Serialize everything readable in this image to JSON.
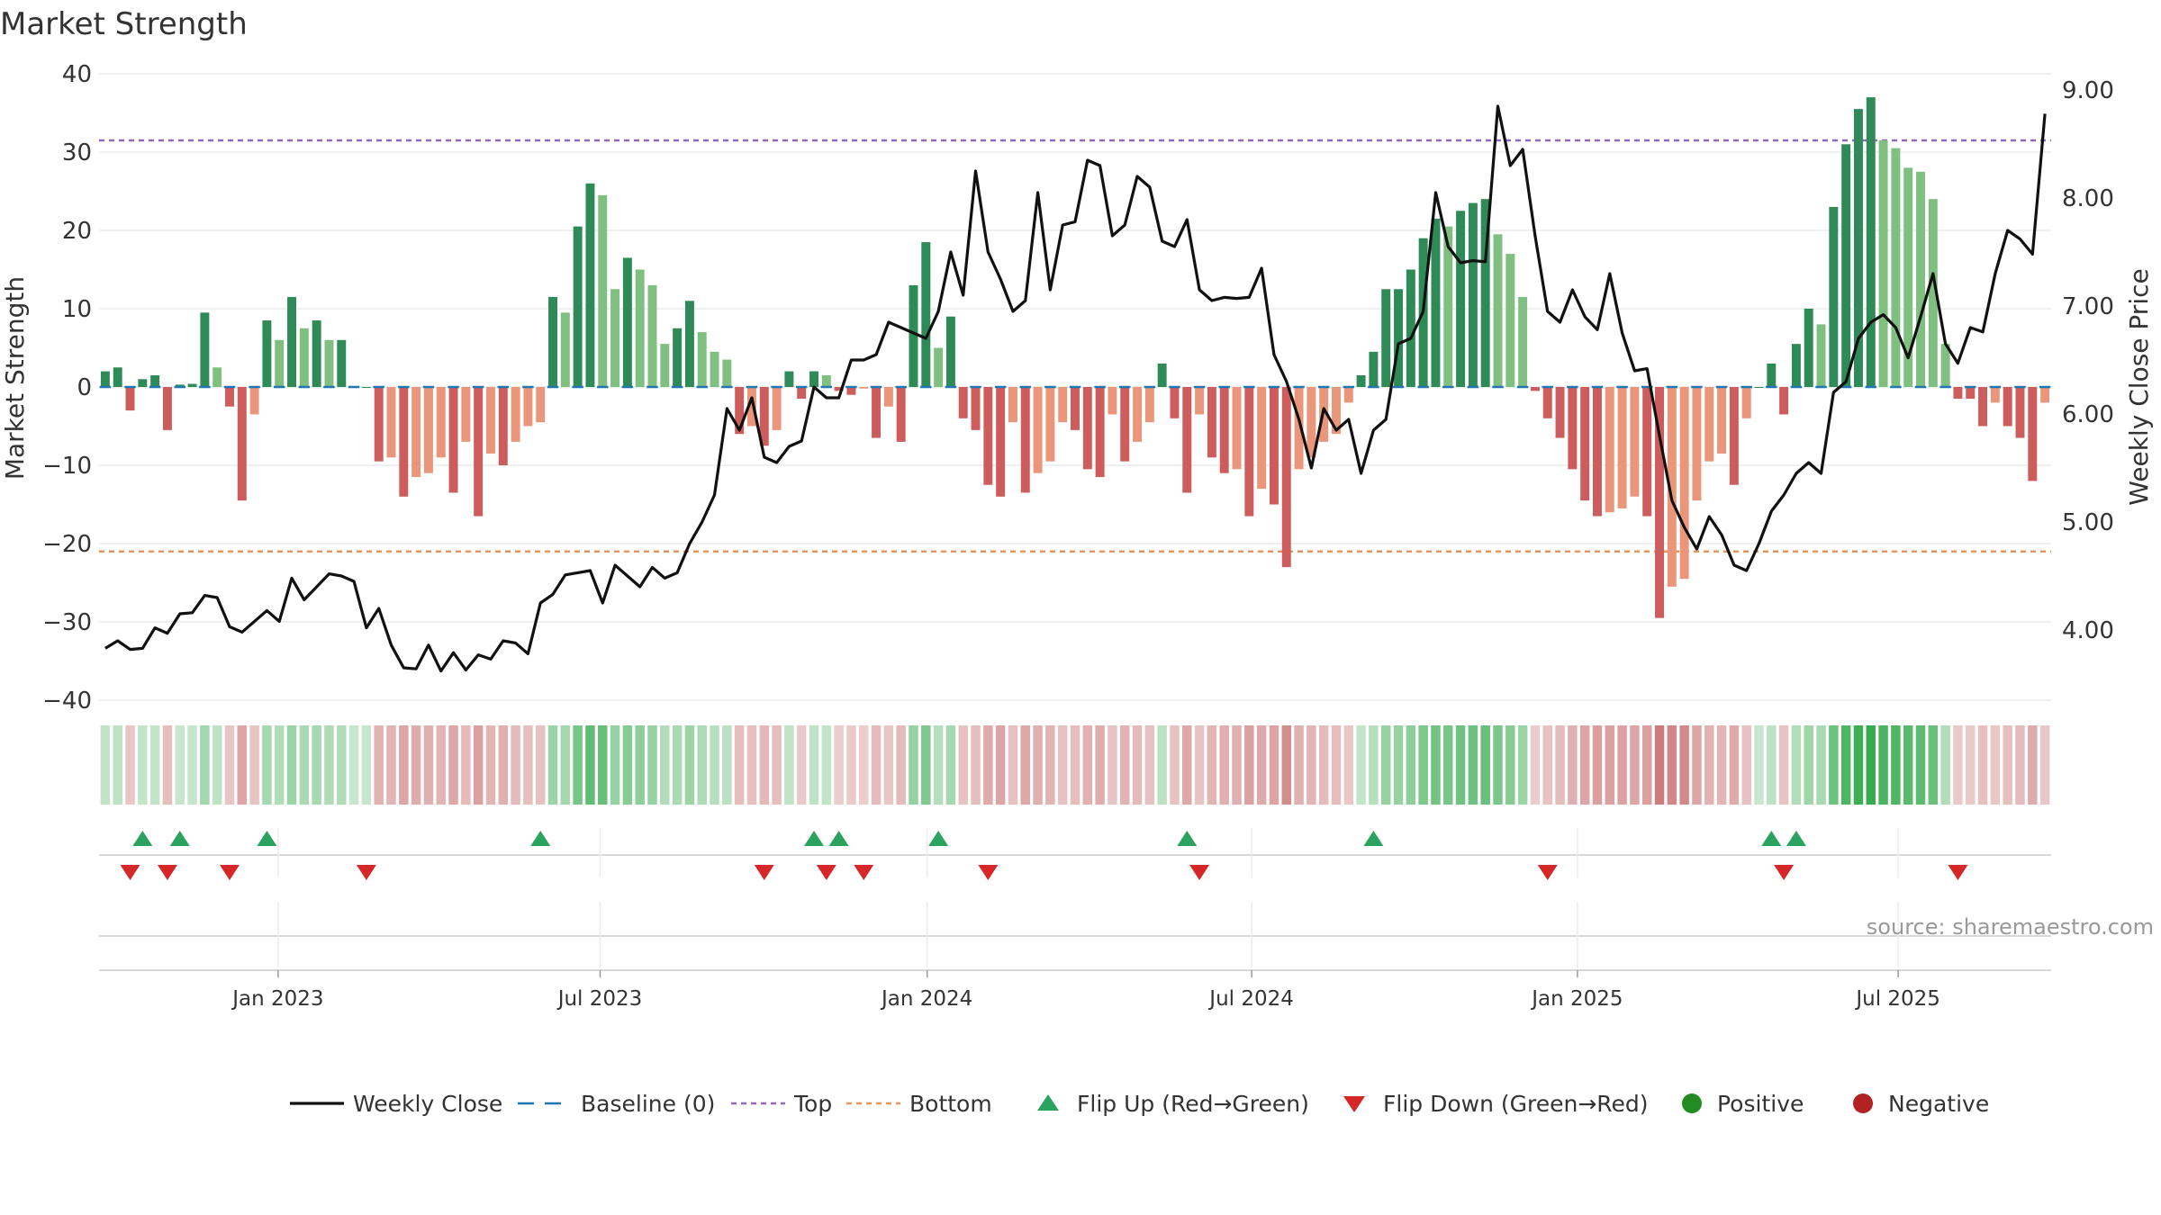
{
  "chart_data": {
    "type": "bar+line",
    "title": "Market Strength",
    "ylabel_left": "Market Strength",
    "ylabel_right": "Weekly Close Price",
    "source": "source: sharemaestro.com",
    "left_axis": {
      "ylim": [
        -40,
        40
      ],
      "ticks": [
        40,
        30,
        20,
        10,
        0,
        -10,
        -20,
        -30,
        -40
      ],
      "tick_labels": [
        "40",
        "30",
        "20",
        "10",
        "0",
        "−10",
        "−20",
        "−30",
        "−40"
      ]
    },
    "right_axis": {
      "ylim": [
        3.35,
        9.15
      ],
      "ticks": [
        9,
        8,
        7,
        6,
        5,
        4
      ],
      "tick_labels": [
        "9.00",
        "8.00",
        "7.00",
        "6.00",
        "5.00",
        "4.00"
      ]
    },
    "x_tick_labels": [
      "Jan 2023",
      "Jul 2023",
      "Jan 2024",
      "Jul 2024",
      "Jan 2025",
      "Jul 2025"
    ],
    "x_tick_weeks": [
      14.4,
      40.3,
      66.6,
      92.7,
      118.9,
      144.7
    ],
    "top_level": 31.5,
    "bottom_level": -21,
    "strength": [
      2,
      2.5,
      -3,
      1,
      1.5,
      -5.5,
      0.3,
      0.4,
      9.5,
      2.5,
      -2.5,
      -14.5,
      -3.5,
      8.5,
      6,
      11.5,
      7.5,
      8.5,
      6,
      6,
      0,
      0,
      -9.5,
      -9,
      -14,
      -11.5,
      -11,
      -9,
      -13.5,
      -7,
      -16.5,
      -8.5,
      -10,
      -7,
      -5,
      -4.5,
      11.5,
      9.5,
      20.5,
      26,
      24.5,
      12.5,
      16.5,
      15,
      13,
      5.5,
      7.5,
      11,
      7,
      4.5,
      3.5,
      -6,
      -5,
      -7.5,
      -5.5,
      2,
      -1.5,
      2,
      1.5,
      -0.5,
      -1,
      -0.2,
      -6.5,
      -2.5,
      -7,
      13,
      18.5,
      5,
      9,
      -4,
      -5.5,
      -12.5,
      -14,
      -4.5,
      -13.5,
      -11,
      -9.5,
      -4.5,
      -5.5,
      -10.5,
      -11.5,
      -3.5,
      -9.5,
      -7,
      -4.5,
      3,
      -4,
      -13.5,
      -3.5,
      -9,
      -11,
      -10.5,
      -16.5,
      -13,
      -15,
      -23,
      -10.5,
      -9,
      -7,
      -6,
      -2,
      1.5,
      4.5,
      12.5,
      12.5,
      15,
      19,
      21.5,
      20.5,
      22.5,
      23.5,
      24,
      19.5,
      17,
      11.5,
      -0.5,
      -4,
      -6.5,
      -10.5,
      -14.5,
      -16.5,
      -16,
      -15.5,
      -14,
      -16.5,
      -29.5,
      -25.5,
      -24.5,
      -14.5,
      -9.5,
      -8.5,
      -12.5,
      -4,
      0,
      3,
      -3.5,
      5.5,
      10,
      8,
      23,
      31,
      35.5,
      37,
      31.5,
      30.5,
      28,
      27.5,
      24,
      5.5,
      -1.5,
      -1.5,
      -5,
      -2,
      -5,
      -6.5,
      -12,
      -2
    ],
    "weekly_close": [
      3.83,
      3.9,
      3.82,
      3.83,
      4.02,
      3.97,
      4.15,
      4.16,
      4.32,
      4.3,
      4.03,
      3.98,
      4.08,
      4.18,
      4.08,
      4.48,
      4.28,
      4.4,
      4.52,
      4.5,
      4.45,
      4.02,
      4.2,
      3.86,
      3.65,
      3.64,
      3.86,
      3.62,
      3.79,
      3.63,
      3.77,
      3.73,
      3.9,
      3.88,
      3.78,
      4.25,
      4.33,
      4.51,
      4.53,
      4.55,
      4.25,
      4.6,
      4.5,
      4.4,
      4.58,
      4.48,
      4.53,
      4.8,
      5.0,
      5.25,
      6.05,
      5.85,
      6.15,
      5.6,
      5.55,
      5.7,
      5.75,
      6.25,
      6.15,
      6.15,
      6.5,
      6.5,
      6.55,
      6.85,
      6.8,
      6.75,
      6.7,
      6.95,
      7.5,
      7.1,
      8.25,
      7.5,
      7.25,
      6.95,
      7.05,
      8.05,
      7.15,
      7.75,
      7.78,
      8.35,
      8.3,
      7.65,
      7.75,
      8.2,
      8.1,
      7.6,
      7.55,
      7.8,
      7.15,
      7.05,
      7.08,
      7.07,
      7.08,
      7.35,
      6.55,
      6.3,
      5.95,
      5.5,
      6.05,
      5.85,
      5.95,
      5.45,
      5.85,
      5.95,
      6.65,
      6.7,
      6.95,
      8.05,
      7.55,
      7.4,
      7.42,
      7.41,
      8.85,
      8.3,
      8.45,
      7.65,
      6.95,
      6.85,
      7.15,
      6.9,
      6.78,
      7.3,
      6.75,
      6.4,
      6.42,
      5.8,
      5.2,
      4.95,
      4.75,
      5.05,
      4.88,
      4.6,
      4.55,
      4.8,
      5.1,
      5.25,
      5.45,
      5.55,
      5.45,
      6.2,
      6.3,
      6.7,
      6.85,
      6.92,
      6.8,
      6.52,
      6.9,
      7.3,
      6.65,
      6.47,
      6.8,
      6.76,
      7.3,
      7.7,
      7.62,
      7.48,
      8.78
    ],
    "flip_up_weeks": [
      3,
      6,
      13,
      35,
      57,
      59,
      67,
      87,
      102,
      134,
      136
    ],
    "flip_down_weeks": [
      2,
      5,
      10,
      21,
      53,
      58,
      61,
      71,
      88,
      116,
      135,
      149
    ],
    "legend": [
      {
        "label": "Weekly Close",
        "symbol": "line",
        "color": "#111111"
      },
      {
        "label": "Baseline (0)",
        "symbol": "dash",
        "color": "#1f77b4"
      },
      {
        "label": "Top",
        "symbol": "dot",
        "color": "#9467bd"
      },
      {
        "label": "Bottom",
        "symbol": "dot",
        "color": "#e8955a"
      },
      {
        "label": "Flip Up (Red→Green)",
        "symbol": "tri-up",
        "color": "#2ca25f"
      },
      {
        "label": "Flip Down (Green→Red)",
        "symbol": "tri-down",
        "color": "#d62728"
      },
      {
        "label": "Positive",
        "symbol": "circle",
        "color": "#228b22"
      },
      {
        "label": "Negative",
        "symbol": "circle",
        "color": "#b22222"
      }
    ],
    "colors": {
      "pos_strong": "#2e8b57",
      "pos_weak": "#7fbf7f",
      "neg_strong": "#cd5c5c",
      "neg_weak": "#e9967a",
      "baseline": "#1f77b4",
      "top": "#9467bd",
      "bottom": "#e8955a",
      "close": "#111111",
      "flip_up": "#2ca25f",
      "flip_down": "#d62728"
    }
  }
}
